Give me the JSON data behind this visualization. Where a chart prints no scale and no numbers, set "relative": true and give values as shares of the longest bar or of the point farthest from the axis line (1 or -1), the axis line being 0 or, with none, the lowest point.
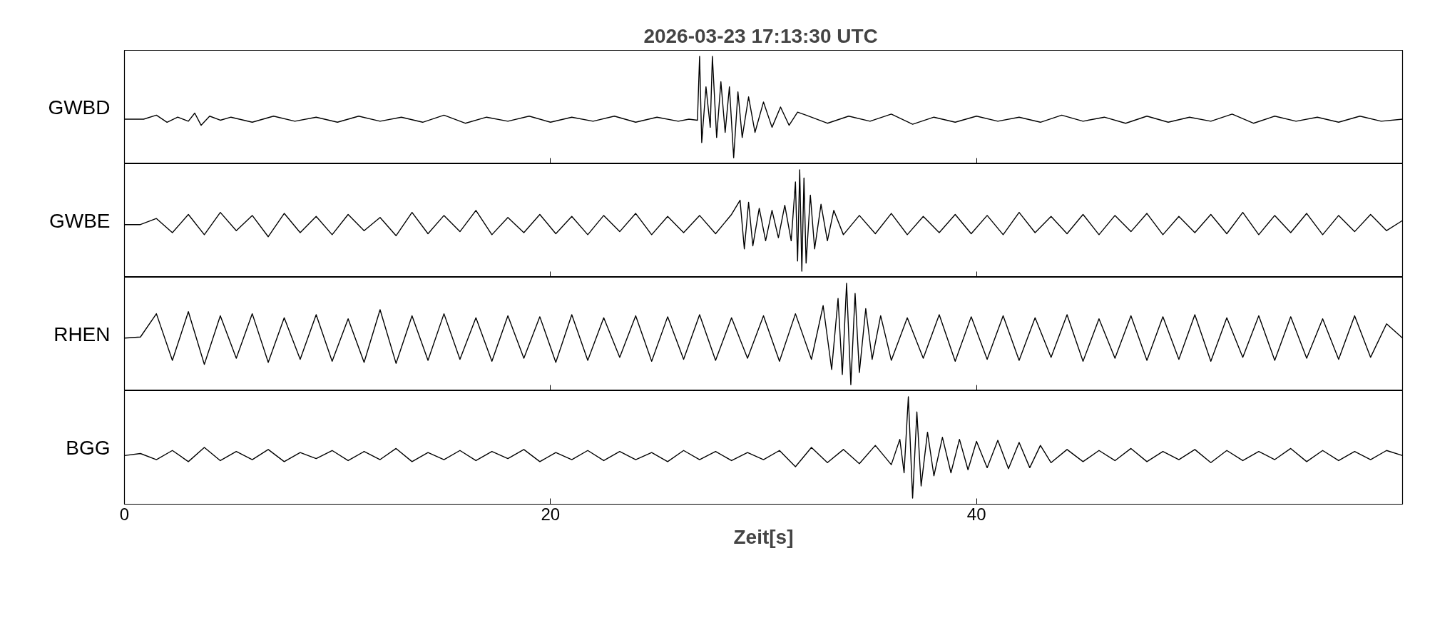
{
  "chart_data": [
    {
      "type": "line",
      "title": "2026-03-23  17:13:30 UTC",
      "ylabel": "GWBD",
      "relative": true,
      "xlim": [
        0,
        60
      ],
      "xticks": [
        0,
        20,
        40
      ],
      "tick_labels": false,
      "x": [
        0,
        0.9,
        1.5,
        2,
        2.5,
        3,
        3.3,
        3.6,
        4,
        4.5,
        5,
        6,
        7,
        8,
        9,
        10,
        11,
        12,
        13,
        14,
        15,
        16,
        17,
        18,
        19,
        20,
        21,
        22,
        23,
        24,
        25,
        26,
        26.5,
        26.9,
        27.0,
        27.1,
        27.3,
        27.5,
        27.6,
        27.8,
        28.0,
        28.2,
        28.4,
        28.6,
        28.8,
        29.0,
        29.3,
        29.6,
        30.0,
        30.4,
        30.8,
        31.2,
        31.6,
        32,
        33,
        34,
        35,
        36,
        37,
        38,
        39,
        40,
        41,
        42,
        43,
        44,
        45,
        46,
        47,
        48,
        49,
        50,
        51,
        52,
        53,
        54,
        55,
        56,
        57,
        58,
        59,
        60
      ],
      "series": [
        {
          "color": "#000000",
          "values": [
            0.38,
            0.38,
            0.42,
            0.35,
            0.4,
            0.36,
            0.44,
            0.32,
            0.41,
            0.37,
            0.4,
            0.35,
            0.41,
            0.36,
            0.4,
            0.35,
            0.41,
            0.36,
            0.4,
            0.35,
            0.42,
            0.34,
            0.4,
            0.36,
            0.41,
            0.35,
            0.4,
            0.36,
            0.41,
            0.35,
            0.4,
            0.36,
            0.38,
            0.37,
            1.0,
            0.15,
            0.7,
            0.3,
            1.0,
            0.2,
            0.75,
            0.25,
            0.7,
            0.0,
            0.65,
            0.2,
            0.6,
            0.25,
            0.55,
            0.3,
            0.5,
            0.32,
            0.45,
            0.42,
            0.34,
            0.41,
            0.36,
            0.43,
            0.33,
            0.4,
            0.35,
            0.41,
            0.36,
            0.4,
            0.35,
            0.42,
            0.36,
            0.4,
            0.34,
            0.41,
            0.35,
            0.4,
            0.36,
            0.43,
            0.34,
            0.41,
            0.36,
            0.4,
            0.35,
            0.41,
            0.36,
            0.38
          ]
        }
      ]
    },
    {
      "type": "line",
      "ylabel": "GWBE",
      "relative": true,
      "xlim": [
        0,
        60
      ],
      "xticks": [
        0,
        20,
        40
      ],
      "tick_labels": false,
      "x": [
        0,
        0.75,
        1.5,
        2.25,
        3,
        3.75,
        4.5,
        5.25,
        6,
        6.75,
        7.5,
        8.25,
        9,
        9.75,
        10.5,
        11.25,
        12,
        12.75,
        13.5,
        14.25,
        15,
        15.75,
        16.5,
        17.25,
        18,
        18.75,
        19.5,
        20.25,
        21,
        21.75,
        22.5,
        23.25,
        24,
        24.75,
        25.5,
        26.25,
        27,
        27.75,
        28.5,
        28.9,
        29.1,
        29.3,
        29.5,
        29.8,
        30.1,
        30.4,
        30.7,
        31.0,
        31.3,
        31.5,
        31.6,
        31.7,
        31.8,
        31.9,
        32.0,
        32.2,
        32.4,
        32.7,
        33.0,
        33.3,
        33.75,
        34.5,
        35.25,
        36,
        36.75,
        37.5,
        38.25,
        39,
        39.75,
        40.5,
        41.25,
        42,
        42.75,
        43.5,
        44.25,
        45,
        45.75,
        46.5,
        47.25,
        48,
        48.75,
        49.5,
        50.25,
        51,
        51.75,
        52.5,
        53.25,
        54,
        54.75,
        55.5,
        56.25,
        57,
        57.75,
        58.5,
        59.25,
        60
      ],
      "series": [
        {
          "color": "#000000",
          "values": [
            0.46,
            0.46,
            0.52,
            0.38,
            0.56,
            0.36,
            0.58,
            0.4,
            0.55,
            0.34,
            0.57,
            0.38,
            0.54,
            0.36,
            0.56,
            0.4,
            0.53,
            0.35,
            0.58,
            0.37,
            0.55,
            0.39,
            0.6,
            0.36,
            0.53,
            0.38,
            0.56,
            0.37,
            0.54,
            0.36,
            0.55,
            0.39,
            0.57,
            0.36,
            0.54,
            0.38,
            0.55,
            0.37,
            0.56,
            0.7,
            0.22,
            0.68,
            0.25,
            0.62,
            0.3,
            0.6,
            0.33,
            0.65,
            0.3,
            0.88,
            0.1,
            1.0,
            0.0,
            0.92,
            0.08,
            0.75,
            0.22,
            0.66,
            0.3,
            0.6,
            0.36,
            0.55,
            0.37,
            0.57,
            0.36,
            0.54,
            0.38,
            0.56,
            0.37,
            0.55,
            0.36,
            0.58,
            0.38,
            0.54,
            0.37,
            0.56,
            0.36,
            0.55,
            0.39,
            0.57,
            0.36,
            0.54,
            0.38,
            0.56,
            0.37,
            0.58,
            0.36,
            0.55,
            0.38,
            0.57,
            0.36,
            0.55,
            0.39,
            0.56,
            0.4,
            0.5
          ]
        }
      ]
    },
    {
      "type": "line",
      "ylabel": "RHEN",
      "relative": true,
      "xlim": [
        0,
        60
      ],
      "xticks": [
        0,
        20,
        40
      ],
      "tick_labels": false,
      "x": [
        0,
        0.75,
        1.5,
        2.25,
        3,
        3.75,
        4.5,
        5.25,
        6,
        6.75,
        7.5,
        8.25,
        9,
        9.75,
        10.5,
        11.25,
        12,
        12.75,
        13.5,
        14.25,
        15,
        15.75,
        16.5,
        17.25,
        18,
        18.75,
        19.5,
        20.25,
        21,
        21.75,
        22.5,
        23.25,
        24,
        24.75,
        25.5,
        26.25,
        27,
        27.75,
        28.5,
        29.25,
        30,
        30.75,
        31.5,
        32.25,
        32.8,
        33.2,
        33.5,
        33.7,
        33.9,
        34.1,
        34.3,
        34.5,
        34.8,
        35.1,
        35.5,
        36,
        36.75,
        37.5,
        38.25,
        39,
        39.75,
        40.5,
        41.25,
        42,
        42.75,
        43.5,
        44.25,
        45,
        45.75,
        46.5,
        47.25,
        48,
        48.75,
        49.5,
        50.25,
        51,
        51.75,
        52.5,
        53.25,
        54,
        54.75,
        55.5,
        56.25,
        57,
        57.75,
        58.5,
        59.25,
        60
      ],
      "series": [
        {
          "color": "#000000",
          "values": [
            0.46,
            0.47,
            0.7,
            0.24,
            0.72,
            0.2,
            0.68,
            0.26,
            0.7,
            0.22,
            0.66,
            0.25,
            0.69,
            0.23,
            0.65,
            0.22,
            0.74,
            0.21,
            0.68,
            0.24,
            0.7,
            0.25,
            0.66,
            0.23,
            0.68,
            0.26,
            0.67,
            0.22,
            0.69,
            0.24,
            0.66,
            0.27,
            0.68,
            0.23,
            0.67,
            0.25,
            0.69,
            0.24,
            0.66,
            0.26,
            0.68,
            0.23,
            0.7,
            0.25,
            0.78,
            0.15,
            0.85,
            0.1,
            1.0,
            0.0,
            0.9,
            0.12,
            0.75,
            0.25,
            0.68,
            0.24,
            0.66,
            0.26,
            0.69,
            0.23,
            0.67,
            0.25,
            0.68,
            0.24,
            0.66,
            0.27,
            0.69,
            0.23,
            0.65,
            0.26,
            0.68,
            0.24,
            0.67,
            0.25,
            0.69,
            0.23,
            0.66,
            0.27,
            0.68,
            0.24,
            0.67,
            0.26,
            0.65,
            0.25,
            0.68,
            0.27,
            0.6,
            0.46
          ]
        }
      ]
    },
    {
      "type": "line",
      "ylabel": "BGG",
      "xlabel": "Zeit[s]",
      "relative": true,
      "xlim": [
        0,
        60
      ],
      "xticks": [
        0,
        20,
        40
      ],
      "tick_labels": "x",
      "x": [
        0,
        0.75,
        1.5,
        2.25,
        3,
        3.75,
        4.5,
        5.25,
        6,
        6.75,
        7.5,
        8.25,
        9,
        9.75,
        10.5,
        11.25,
        12,
        12.75,
        13.5,
        14.25,
        15,
        15.75,
        16.5,
        17.25,
        18,
        18.75,
        19.5,
        20.25,
        21,
        21.75,
        22.5,
        23.25,
        24,
        24.75,
        25.5,
        26.25,
        27,
        27.75,
        28.5,
        29.25,
        30,
        30.75,
        31.5,
        32.25,
        33,
        33.75,
        34.5,
        35.25,
        36,
        36.4,
        36.6,
        36.8,
        37.0,
        37.2,
        37.4,
        37.7,
        38.0,
        38.4,
        38.8,
        39.2,
        39.6,
        40.0,
        40.5,
        41.0,
        41.5,
        42.0,
        42.5,
        43.0,
        43.5,
        44.25,
        45,
        45.75,
        46.5,
        47.25,
        48,
        48.75,
        49.5,
        50.25,
        51,
        51.75,
        52.5,
        53.25,
        54,
        54.75,
        55.5,
        56.25,
        57,
        57.75,
        58.5,
        59.25,
        60
      ],
      "series": [
        {
          "color": "#000000",
          "values": [
            0.42,
            0.44,
            0.38,
            0.47,
            0.36,
            0.5,
            0.37,
            0.46,
            0.38,
            0.48,
            0.36,
            0.45,
            0.39,
            0.47,
            0.37,
            0.46,
            0.38,
            0.49,
            0.36,
            0.45,
            0.38,
            0.47,
            0.37,
            0.46,
            0.39,
            0.48,
            0.36,
            0.45,
            0.38,
            0.47,
            0.37,
            0.46,
            0.38,
            0.45,
            0.36,
            0.47,
            0.38,
            0.46,
            0.37,
            0.45,
            0.38,
            0.47,
            0.31,
            0.5,
            0.35,
            0.48,
            0.34,
            0.52,
            0.33,
            0.58,
            0.25,
            1.0,
            0.0,
            0.85,
            0.12,
            0.65,
            0.22,
            0.6,
            0.25,
            0.58,
            0.28,
            0.56,
            0.3,
            0.57,
            0.29,
            0.55,
            0.3,
            0.52,
            0.35,
            0.48,
            0.36,
            0.47,
            0.37,
            0.49,
            0.36,
            0.46,
            0.38,
            0.48,
            0.35,
            0.47,
            0.37,
            0.46,
            0.38,
            0.49,
            0.36,
            0.47,
            0.37,
            0.46,
            0.38,
            0.47,
            0.42
          ]
        }
      ]
    }
  ]
}
